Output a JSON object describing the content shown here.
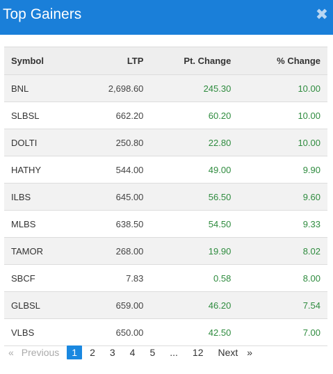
{
  "header": {
    "title": "Top Gainers",
    "close_icon": "close-icon"
  },
  "table": {
    "columns": [
      "Symbol",
      "LTP",
      "Pt. Change",
      "% Change"
    ],
    "rows": [
      {
        "symbol": "BNL",
        "ltp": "2,698.60",
        "pt": "245.30",
        "pct": "10.00"
      },
      {
        "symbol": "SLBSL",
        "ltp": "662.20",
        "pt": "60.20",
        "pct": "10.00"
      },
      {
        "symbol": "DOLTI",
        "ltp": "250.80",
        "pt": "22.80",
        "pct": "10.00"
      },
      {
        "symbol": "HATHY",
        "ltp": "544.00",
        "pt": "49.00",
        "pct": "9.90"
      },
      {
        "symbol": "ILBS",
        "ltp": "645.00",
        "pt": "56.50",
        "pct": "9.60"
      },
      {
        "symbol": "MLBS",
        "ltp": "638.50",
        "pt": "54.50",
        "pct": "9.33"
      },
      {
        "symbol": "TAMOR",
        "ltp": "268.00",
        "pt": "19.90",
        "pct": "8.02"
      },
      {
        "symbol": "SBCF",
        "ltp": "7.83",
        "pt": "0.58",
        "pct": "8.00"
      },
      {
        "symbol": "GLBSL",
        "ltp": "659.00",
        "pt": "46.20",
        "pct": "7.54"
      },
      {
        "symbol": "VLBS",
        "ltp": "650.00",
        "pt": "42.50",
        "pct": "7.00"
      }
    ]
  },
  "pagination": {
    "prev_arrow": "«",
    "prev": "Previous",
    "pages": [
      "1",
      "2",
      "3",
      "4",
      "5"
    ],
    "ellipsis": "...",
    "last": "12",
    "next": "Next",
    "next_arrow": "»",
    "current": "1"
  },
  "colors": {
    "header": "#1a7fd9",
    "positive": "#2e8b3e",
    "active_page": "#1a88e0"
  }
}
